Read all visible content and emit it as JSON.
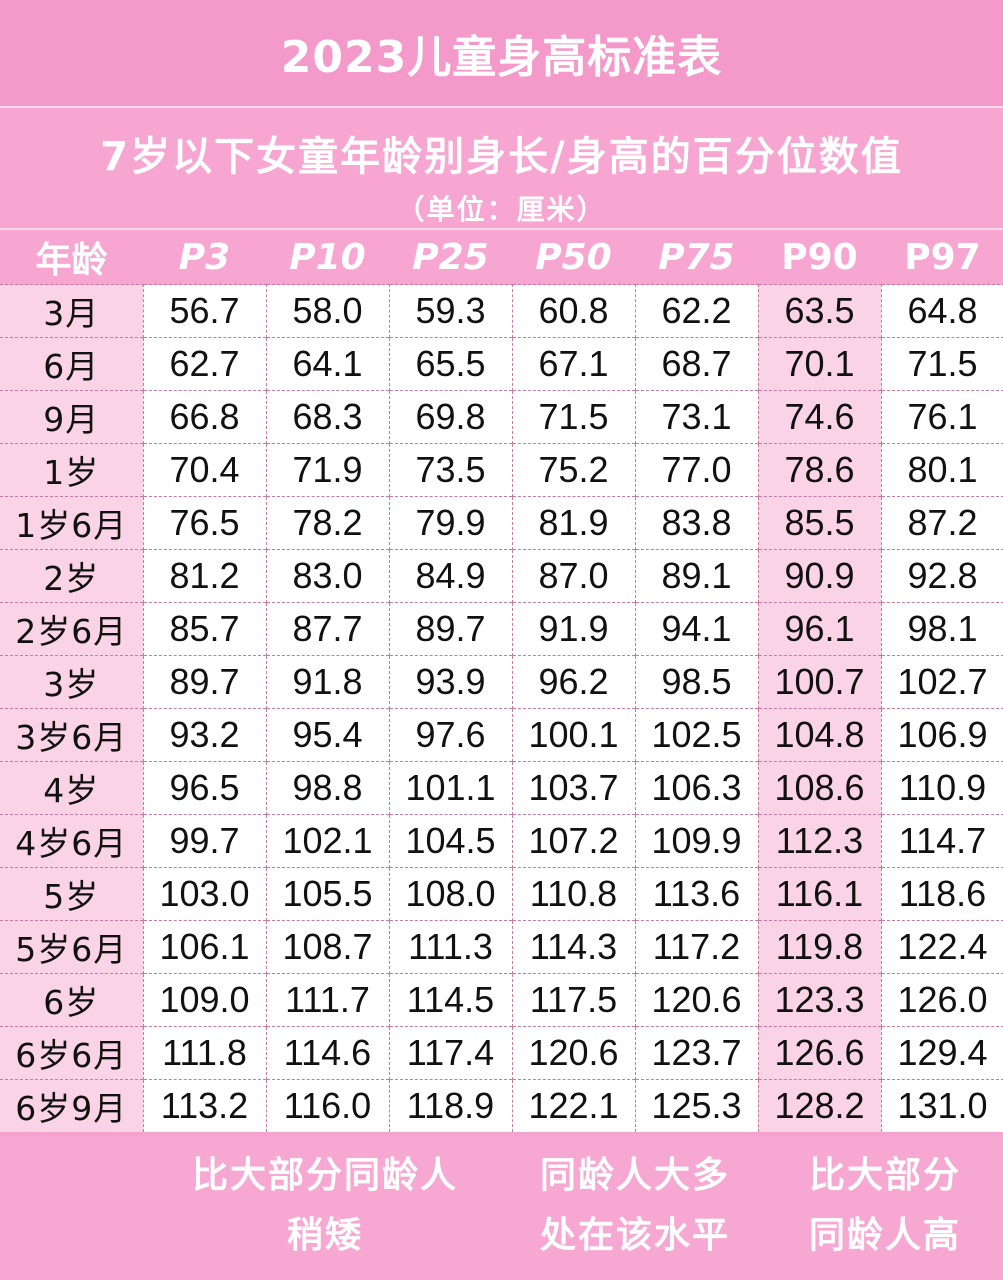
{
  "title": "2023儿童身高标准表",
  "subtitle": "7岁以下女童年龄别身长/身高的百分位数值",
  "unit": "（单位：厘米）",
  "table": {
    "headers": [
      "年龄",
      "P3",
      "P10",
      "P25",
      "P50",
      "P75",
      "P90",
      "P97"
    ],
    "rows": [
      [
        "3月",
        "56.7",
        "58.0",
        "59.3",
        "60.8",
        "62.2",
        "63.5",
        "64.8"
      ],
      [
        "6月",
        "62.7",
        "64.1",
        "65.5",
        "67.1",
        "68.7",
        "70.1",
        "71.5"
      ],
      [
        "9月",
        "66.8",
        "68.3",
        "69.8",
        "71.5",
        "73.1",
        "74.6",
        "76.1"
      ],
      [
        "1岁",
        "70.4",
        "71.9",
        "73.5",
        "75.2",
        "77.0",
        "78.6",
        "80.1"
      ],
      [
        "1岁6月",
        "76.5",
        "78.2",
        "79.9",
        "81.9",
        "83.8",
        "85.5",
        "87.2"
      ],
      [
        "2岁",
        "81.2",
        "83.0",
        "84.9",
        "87.0",
        "89.1",
        "90.9",
        "92.8"
      ],
      [
        "2岁6月",
        "85.7",
        "87.7",
        "89.7",
        "91.9",
        "94.1",
        "96.1",
        "98.1"
      ],
      [
        "3岁",
        "89.7",
        "91.8",
        "93.9",
        "96.2",
        "98.5",
        "100.7",
        "102.7"
      ],
      [
        "3岁6月",
        "93.2",
        "95.4",
        "97.6",
        "100.1",
        "102.5",
        "104.8",
        "106.9"
      ],
      [
        "4岁",
        "96.5",
        "98.8",
        "101.1",
        "103.7",
        "106.3",
        "108.6",
        "110.9"
      ],
      [
        "4岁6月",
        "99.7",
        "102.1",
        "104.5",
        "107.2",
        "109.9",
        "112.3",
        "114.7"
      ],
      [
        "5岁",
        "103.0",
        "105.5",
        "108.0",
        "110.8",
        "113.6",
        "116.1",
        "118.6"
      ],
      [
        "5岁6月",
        "106.1",
        "108.7",
        "111.3",
        "114.3",
        "117.2",
        "119.8",
        "122.4"
      ],
      [
        "6岁",
        "109.0",
        "111.7",
        "114.5",
        "117.5",
        "120.6",
        "123.3",
        "126.0"
      ],
      [
        "6岁6月",
        "111.8",
        "114.6",
        "117.4",
        "120.6",
        "123.7",
        "126.6",
        "129.4"
      ],
      [
        "6岁9月",
        "113.2",
        "116.0",
        "118.9",
        "122.1",
        "125.3",
        "128.2",
        "131.0"
      ]
    ]
  },
  "notes": {
    "low": [
      "比大部分同龄人",
      "稍矮"
    ],
    "mid": [
      "同龄人大多",
      "处在该水平"
    ],
    "high": [
      "比大部分",
      "同龄人高"
    ]
  },
  "colors": {
    "header_pink": "#f49acb",
    "light_pink": "#fbd3e6",
    "white": "#ffffff"
  }
}
